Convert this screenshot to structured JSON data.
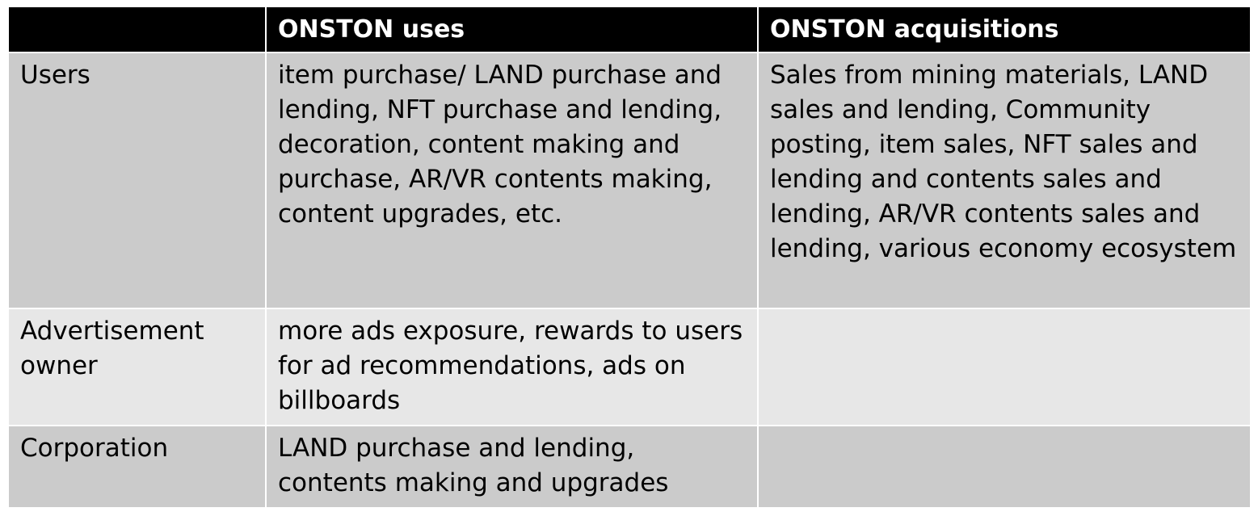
{
  "table": {
    "headers": [
      "",
      "ONSTON uses",
      "ONSTON acquisitions"
    ],
    "rows": [
      {
        "role": "Users",
        "uses": "item purchase/ LAND purchase and lending, NFT purchase and lending, decoration, content making and purchase, AR/VR contents making, content upgrades, etc.",
        "acquisitions": "Sales from mining materials, LAND sales and lending, Community posting, item sales, NFT sales and lending and contents sales and lending, AR/VR contents sales and lending, various economy ecosystem"
      },
      {
        "role": "Advertisement owner",
        "uses": "more ads exposure, rewards to users for ad recommendations, ads on billboards",
        "acquisitions": ""
      },
      {
        "role": "Corporation",
        "uses": "LAND purchase and lending, contents making and upgrades",
        "acquisitions": ""
      }
    ]
  }
}
